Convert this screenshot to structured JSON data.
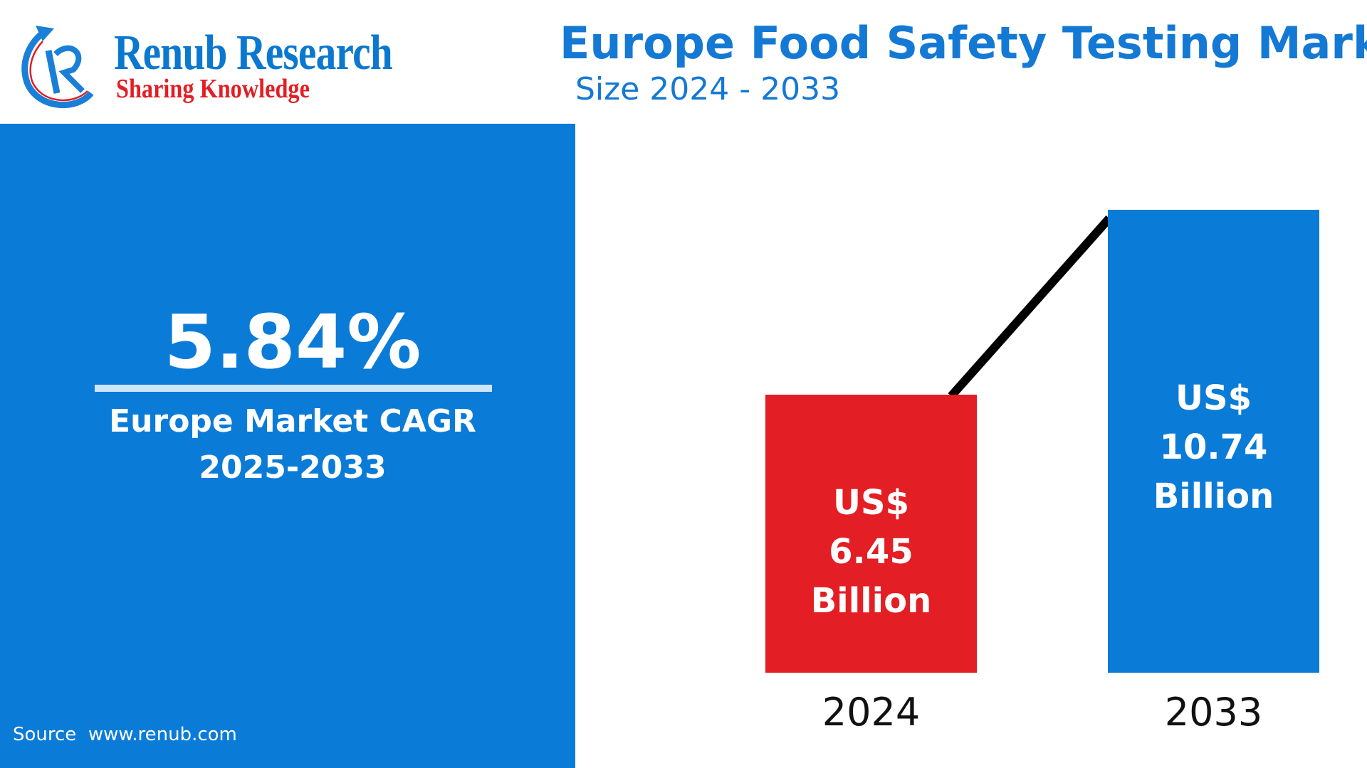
{
  "logo": {
    "name": "Renub Research",
    "tagline": "Sharing Knowledge"
  },
  "header": {
    "title": "Europe Food Safety Testing Market",
    "subtitle": "Size 2024 - 2033"
  },
  "cagr_panel": {
    "value": "5.84%",
    "label_line1": "Europe Market CAGR",
    "label_line2": "2025-2033",
    "source": "Source  www.renub.com"
  },
  "colors": {
    "blue": "#0b7bd8",
    "red": "#e31e24",
    "title_blue": "#1479d4"
  },
  "chart_data": {
    "type": "bar",
    "categories": [
      "2024",
      "2033"
    ],
    "values": [
      6.45,
      10.74
    ],
    "unit": "US$ Billion",
    "bar_colors": [
      "#e31e24",
      "#0b7bd8"
    ],
    "data_labels": [
      {
        "line1": "US$",
        "line2": "6.45",
        "line3": "Billion"
      },
      {
        "line1": "US$",
        "line2": "10.74",
        "line3": "Billion"
      }
    ],
    "trend_line": true,
    "grid": false
  }
}
